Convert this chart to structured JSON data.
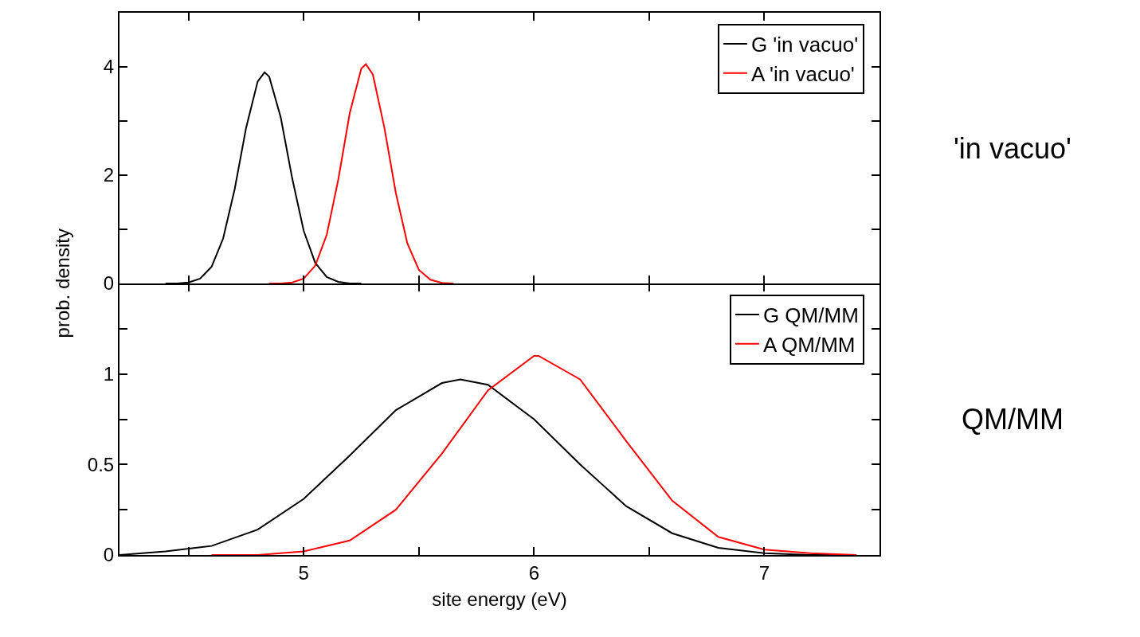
{
  "chart_data": [
    {
      "type": "line",
      "ylabel": "prob. density",
      "xlim": [
        4.2,
        7.5
      ],
      "xticks": [
        {
          "value": 4.5,
          "label": null
        },
        5,
        {
          "value": 5.5,
          "label": null
        },
        6,
        {
          "value": 6.5,
          "label": null
        },
        7
      ],
      "ylim": [
        0,
        5
      ],
      "yticks": [
        0,
        {
          "value": 1,
          "label": null
        },
        2,
        {
          "value": 3,
          "label": null
        },
        4
      ],
      "tick_labels": "y",
      "grid": false,
      "legend": "top right",
      "marker": "none",
      "line_style": "solid",
      "annotations": [
        "'in vacuo'"
      ],
      "series": [
        {
          "name": "G 'in vacuo'",
          "color": "#000000",
          "x": [
            4.4,
            4.45,
            4.5,
            4.55,
            4.6,
            4.65,
            4.7,
            4.75,
            4.8,
            4.83,
            4.85,
            4.9,
            4.95,
            5.0,
            5.05,
            5.1,
            5.15,
            5.2,
            5.25
          ],
          "values": [
            0,
            0,
            0.02,
            0.09,
            0.31,
            0.83,
            1.74,
            2.88,
            3.73,
            3.9,
            3.82,
            3.07,
            1.94,
            0.97,
            0.38,
            0.12,
            0.03,
            0,
            0
          ]
        },
        {
          "name": "A 'in vacuo'",
          "color": "#ff0000",
          "x": [
            4.85,
            4.9,
            4.95,
            5.0,
            5.05,
            5.1,
            5.15,
            5.2,
            5.25,
            5.27,
            5.3,
            5.35,
            5.4,
            5.45,
            5.5,
            5.55,
            5.6,
            5.65
          ],
          "values": [
            0,
            0,
            0.02,
            0.09,
            0.33,
            0.9,
            1.92,
            3.15,
            3.97,
            4.05,
            3.86,
            2.88,
            1.67,
            0.74,
            0.25,
            0.07,
            0.01,
            0
          ]
        }
      ]
    },
    {
      "type": "line",
      "xlabel": "site energy (eV)",
      "xlim": [
        4.2,
        7.5
      ],
      "xticks": [
        {
          "value": 4.5,
          "label": null
        },
        5,
        {
          "value": 5.5,
          "label": null
        },
        6,
        {
          "value": 6.5,
          "label": null
        },
        7
      ],
      "ylim": [
        0,
        1.5
      ],
      "yticks": [
        0,
        {
          "value": 0.25,
          "label": null
        },
        0.5,
        {
          "value": 0.75,
          "label": null
        },
        1,
        {
          "value": 1.25,
          "label": null
        }
      ],
      "grid": false,
      "legend": "top right",
      "marker": "none",
      "line_style": "solid",
      "annotations": [
        "QM/MM"
      ],
      "series": [
        {
          "name": "G QM/MM",
          "color": "#000000",
          "x": [
            4.2,
            4.4,
            4.6,
            4.8,
            5.0,
            5.2,
            5.4,
            5.6,
            5.68,
            5.8,
            6.0,
            6.2,
            6.4,
            6.6,
            6.8,
            7.0,
            7.2,
            7.4
          ],
          "values": [
            0,
            0.02,
            0.05,
            0.14,
            0.31,
            0.55,
            0.8,
            0.95,
            0.97,
            0.94,
            0.75,
            0.5,
            0.27,
            0.12,
            0.04,
            0.01,
            0,
            0
          ]
        },
        {
          "name": "A QM/MM",
          "color": "#ff0000",
          "x": [
            4.6,
            4.8,
            5.0,
            5.2,
            5.4,
            5.6,
            5.8,
            6.0,
            6.02,
            6.2,
            6.4,
            6.6,
            6.8,
            7.0,
            7.2,
            7.4
          ],
          "values": [
            0,
            0,
            0.02,
            0.08,
            0.25,
            0.56,
            0.91,
            1.1,
            1.1,
            0.97,
            0.63,
            0.3,
            0.1,
            0.03,
            0.01,
            0
          ]
        }
      ]
    }
  ]
}
